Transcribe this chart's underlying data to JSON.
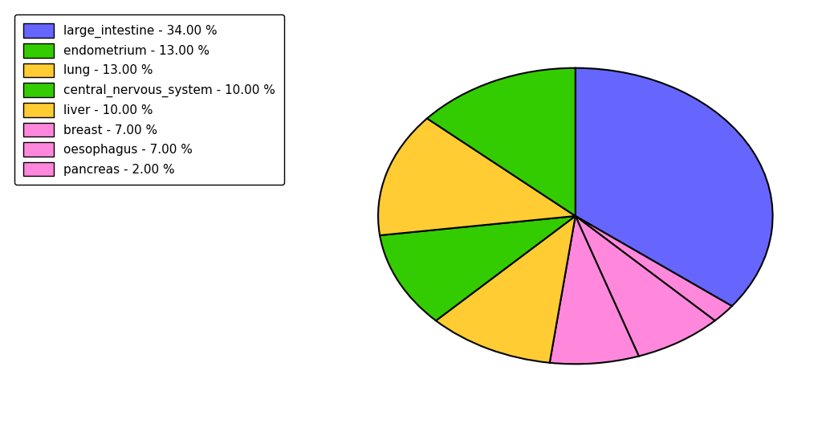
{
  "labels": [
    "large_intestine",
    "pancreas",
    "breast",
    "oesophagus",
    "liver",
    "central_nervous_system",
    "lung",
    "endometrium"
  ],
  "values": [
    34.0,
    2.0,
    7.0,
    7.0,
    10.0,
    10.0,
    13.0,
    13.0
  ],
  "colors": [
    "#6666ff",
    "#ff88dd",
    "#ff88dd",
    "#ff88dd",
    "#ffcc33",
    "#33cc00",
    "#ffcc33",
    "#33cc00"
  ],
  "legend_labels": [
    "large_intestine - 34.00 %",
    "endometrium - 13.00 %",
    "lung - 13.00 %",
    "central_nervous_system - 10.00 %",
    "liver - 10.00 %",
    "breast - 7.00 %",
    "oesophagus - 7.00 %",
    "pancreas - 2.00 %"
  ],
  "legend_colors": [
    "#6666ff",
    "#33cc00",
    "#ffcc33",
    "#33cc00",
    "#ffcc33",
    "#ff88dd",
    "#ff88dd",
    "#ff88dd"
  ],
  "startangle": 90,
  "background_color": "#ffffff",
  "aspect_ratio": 0.75
}
